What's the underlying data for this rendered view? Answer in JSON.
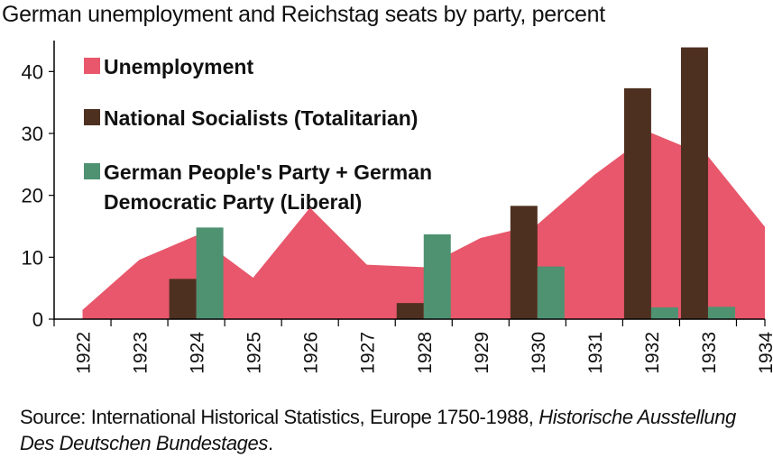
{
  "title": "German unemployment and Reichstag seats by party, percent",
  "source": {
    "prefix": "Source: International Historical Statistics, Europe 1750-1988, ",
    "italic": "Historische Ausstellung Des Deutschen Bundestages",
    "suffix": "."
  },
  "colors": {
    "unemployment": "#E8576B",
    "national_socialists": "#4E3020",
    "liberal": "#4E9272",
    "axis": "#000000"
  },
  "chart_data": {
    "type": "bar",
    "categories": [
      "1922",
      "1923",
      "1924",
      "1925",
      "1926",
      "1927",
      "1928",
      "1929",
      "1930",
      "1931",
      "1932",
      "1933",
      "1934"
    ],
    "ylim": [
      0,
      45
    ],
    "yticks": [
      0,
      10,
      20,
      30,
      40
    ],
    "legend_position": "top-left",
    "grid": false,
    "series": [
      {
        "key": "unemployment",
        "name": "Unemployment",
        "kind": "area",
        "values": [
          1.5,
          9.6,
          13.5,
          6.7,
          18.0,
          8.8,
          8.4,
          13.1,
          15.3,
          23.3,
          30.1,
          26.3,
          14.9
        ]
      },
      {
        "key": "national_socialists",
        "name": "National Socialists (Totalitarian)",
        "kind": "bar",
        "values": [
          null,
          null,
          6.5,
          null,
          null,
          null,
          2.6,
          null,
          18.3,
          null,
          37.3,
          43.9,
          null
        ]
      },
      {
        "key": "liberal",
        "name": "German People's Party + German Democratic Party (Liberal)",
        "legend_lines": [
          "German People's Party + German",
          "Democratic Party (Liberal)"
        ],
        "kind": "bar",
        "values": [
          null,
          null,
          14.8,
          null,
          null,
          null,
          13.7,
          null,
          8.5,
          null,
          1.9,
          2.0,
          null
        ]
      }
    ]
  }
}
